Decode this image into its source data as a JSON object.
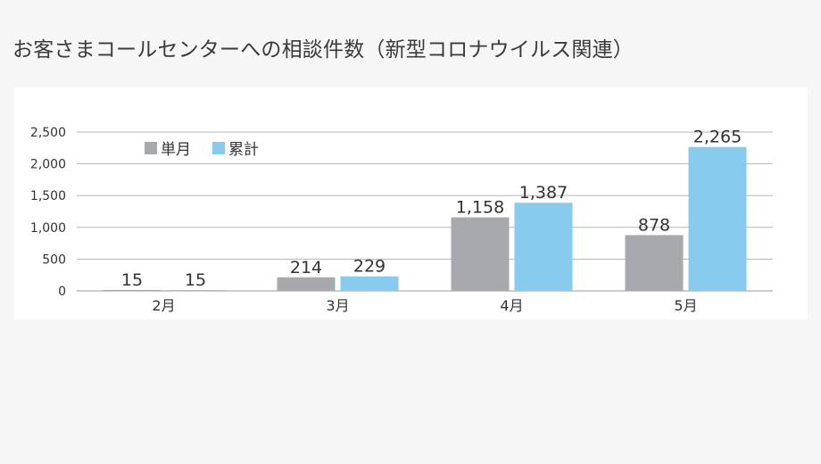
{
  "title": "お客さまコールセンターへの相談件数（新型コロナウイルス関連）",
  "chart_data": {
    "type": "bar",
    "categories": [
      "2月",
      "3月",
      "4月",
      "5月"
    ],
    "series": [
      {
        "name": "単月",
        "values": [
          15,
          214,
          1158,
          878
        ],
        "labels": [
          "15",
          "214",
          "1,158",
          "878"
        ],
        "color": "#a7a9ac"
      },
      {
        "name": "累計",
        "values": [
          15,
          229,
          1387,
          2265
        ],
        "labels": [
          "15",
          "229",
          "1,387",
          "2,265"
        ],
        "color": "#87cbef"
      }
    ],
    "yticks": [
      0,
      500,
      1000,
      1500,
      2000,
      2500
    ],
    "ytick_labels": [
      "0",
      "500",
      "1,000",
      "1,500",
      "2,000",
      "2,500"
    ],
    "ylim": [
      0,
      2500
    ],
    "grid": true,
    "legend_position": "top-left"
  }
}
